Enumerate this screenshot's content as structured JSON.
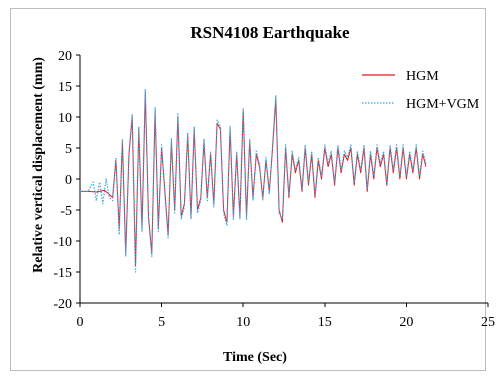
{
  "chart_data": {
    "type": "line",
    "title": "RSN4108 Earthquake",
    "xlabel": "Time (Sec)",
    "ylabel": "Relative vertical displacement (mm)",
    "xlim": [
      0,
      25
    ],
    "ylim": [
      -20,
      20
    ],
    "x_ticks": [
      0,
      5,
      10,
      15,
      20,
      25
    ],
    "y_ticks": [
      -20,
      -15,
      -10,
      -5,
      0,
      5,
      10,
      15,
      20
    ],
    "x_tick_labels": [
      "0",
      "5",
      "10",
      "15",
      "20",
      "25"
    ],
    "y_tick_labels": [
      "-20",
      "-15",
      "-10",
      "-5",
      "0",
      "5",
      "10",
      "15",
      "20"
    ],
    "grid": false,
    "legend_position": "top-right",
    "series": [
      {
        "name": "HGM",
        "color": "#e41a1c",
        "line_style": "solid",
        "x": [
          0,
          0.5,
          1.0,
          1.5,
          1.8,
          2.0,
          2.2,
          2.4,
          2.6,
          2.8,
          3.0,
          3.2,
          3.4,
          3.6,
          3.8,
          4.0,
          4.2,
          4.4,
          4.6,
          4.8,
          5.0,
          5.2,
          5.4,
          5.6,
          5.8,
          6.0,
          6.2,
          6.4,
          6.6,
          6.8,
          7.0,
          7.2,
          7.4,
          7.6,
          7.8,
          8.0,
          8.2,
          8.4,
          8.6,
          8.8,
          9.0,
          9.2,
          9.4,
          9.6,
          9.8,
          10.0,
          10.2,
          10.4,
          10.6,
          10.8,
          11.0,
          11.2,
          11.4,
          11.6,
          11.8,
          12.0,
          12.2,
          12.4,
          12.6,
          12.8,
          13.0,
          13.2,
          13.4,
          13.6,
          13.8,
          14.0,
          14.2,
          14.4,
          14.6,
          14.8,
          15.0,
          15.2,
          15.4,
          15.6,
          15.8,
          16.0,
          16.2,
          16.4,
          16.6,
          16.8,
          17.0,
          17.2,
          17.4,
          17.6,
          17.8,
          18.0,
          18.2,
          18.4,
          18.6,
          18.8,
          19.0,
          19.2,
          19.4,
          19.6,
          19.8,
          20.0,
          20.2,
          20.4,
          20.6,
          20.8,
          21.0,
          21.2
        ],
        "y": [
          -2,
          -2,
          -2.1,
          -1.8,
          -2.5,
          -3,
          3,
          -8,
          6,
          -12,
          4,
          10,
          -14,
          8,
          -8,
          14,
          -6,
          -12,
          11,
          -8,
          5,
          -2,
          -9,
          6,
          -5,
          10,
          -6,
          -4,
          7,
          -6,
          8,
          -5,
          -3,
          6,
          -3,
          4,
          -4,
          9,
          8,
          -5,
          -7,
          8,
          -6,
          4,
          -6,
          11,
          -6,
          6,
          -3,
          4,
          2,
          -3,
          3,
          -2,
          5,
          13,
          -5,
          -7,
          5,
          -3,
          4,
          1,
          3,
          -2,
          5,
          -1,
          4,
          -3,
          3,
          0,
          5,
          2,
          4,
          -1,
          5,
          1,
          4,
          3,
          5,
          -1,
          4,
          1,
          5,
          -2,
          4,
          0,
          5,
          2,
          4,
          -1,
          5,
          1,
          5,
          0,
          5,
          0,
          4,
          1,
          5,
          0,
          4,
          2
        ]
      },
      {
        "name": "HGM+VGM",
        "color": "#3da5e0",
        "line_style": "dotted",
        "x": [
          0,
          0.5,
          0.8,
          1.0,
          1.2,
          1.4,
          1.6,
          1.8,
          2.0,
          2.2,
          2.4,
          2.6,
          2.8,
          3.0,
          3.2,
          3.4,
          3.6,
          3.8,
          4.0,
          4.2,
          4.4,
          4.6,
          4.8,
          5.0,
          5.2,
          5.4,
          5.6,
          5.8,
          6.0,
          6.2,
          6.4,
          6.6,
          6.8,
          7.0,
          7.2,
          7.4,
          7.6,
          7.8,
          8.0,
          8.2,
          8.4,
          8.6,
          8.8,
          9.0,
          9.2,
          9.4,
          9.6,
          9.8,
          10.0,
          10.2,
          10.4,
          10.6,
          10.8,
          11.0,
          11.2,
          11.4,
          11.6,
          11.8,
          12.0,
          12.2,
          12.4,
          12.6,
          12.8,
          13.0,
          13.2,
          13.4,
          13.6,
          13.8,
          14.0,
          14.2,
          14.4,
          14.6,
          14.8,
          15.0,
          15.2,
          15.4,
          15.6,
          15.8,
          16.0,
          16.2,
          16.4,
          16.6,
          16.8,
          17.0,
          17.2,
          17.4,
          17.6,
          17.8,
          18.0,
          18.2,
          18.4,
          18.6,
          18.8,
          19.0,
          19.2,
          19.4,
          19.6,
          19.8,
          20.0,
          20.2,
          20.4,
          20.6,
          20.8,
          21.0,
          21.2
        ],
        "y": [
          -2,
          -2,
          -0.5,
          -3.5,
          -0.5,
          -4,
          0,
          -3,
          -3.5,
          3.5,
          -9,
          6.5,
          -12.5,
          4.5,
          10.5,
          -15,
          8.5,
          -8.5,
          14.5,
          -6.5,
          -12.5,
          11.5,
          -8.5,
          5.5,
          -2.5,
          -9.5,
          6.5,
          -5.5,
          10.5,
          -6.5,
          -4.5,
          7.5,
          -6.5,
          8.5,
          -5.5,
          -3.5,
          6.5,
          -3.5,
          4.5,
          -4.5,
          9.5,
          8.5,
          -5.5,
          -7.5,
          8.5,
          -6.5,
          4.5,
          -6.5,
          11.5,
          -6.5,
          6.5,
          -3.5,
          4.5,
          2.5,
          -3.5,
          3.5,
          -2.5,
          5.5,
          13.5,
          -5.5,
          -6.5,
          5.5,
          -2.5,
          4.5,
          1.5,
          3.5,
          -1.5,
          5.5,
          -0.5,
          4.5,
          -2.5,
          3.5,
          0.5,
          5.5,
          2.5,
          4.5,
          -0.5,
          5.5,
          1.5,
          4.5,
          3.5,
          5.5,
          -0.5,
          4.5,
          1.5,
          5.5,
          -1.5,
          4.5,
          0.5,
          5.5,
          2.5,
          4.5,
          -0.5,
          5.5,
          1.5,
          5.5,
          0.5,
          5.5,
          0.5,
          4.5,
          1.5,
          5.5,
          0.5,
          4.5,
          2.5
        ]
      }
    ]
  }
}
